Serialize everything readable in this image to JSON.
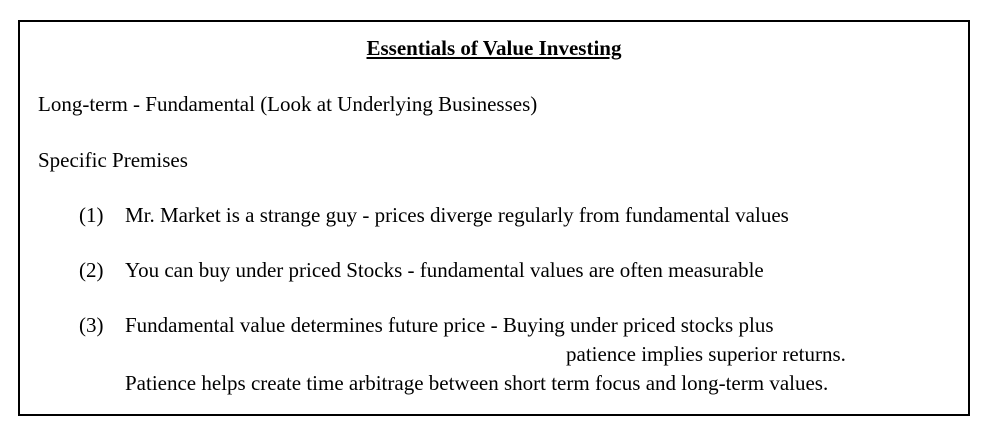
{
  "document": {
    "title": "Essentials of Value Investing",
    "line1": "Long-term - Fundamental (Look at Underlying Businesses)",
    "line2": "Specific Premises",
    "premises": [
      {
        "number": "(1)",
        "text": "Mr. Market is a strange guy - prices diverge regularly from fundamental values"
      },
      {
        "number": "(2)",
        "text": "You can buy under priced Stocks - fundamental values are often measurable"
      },
      {
        "number": "(3)",
        "text": "Fundamental value determines future price - Buying under priced stocks plus",
        "continuation": "patience implies superior returns.",
        "extra": "Patience helps create time arbitrage between short term focus and long-term values."
      }
    ]
  }
}
